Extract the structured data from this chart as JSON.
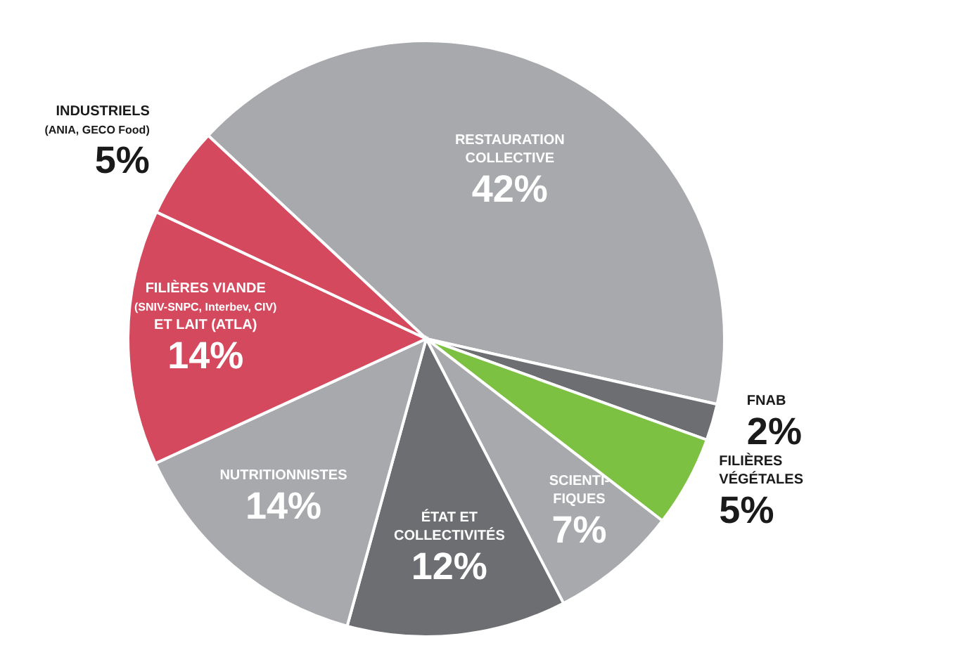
{
  "chart_data": {
    "type": "pie",
    "categories": [
      "RESTAURATION\nCOLLECTIVE",
      "FNAB",
      "FILIÈRES\nVÉGÉTALES",
      "SCIENTI-\nFIQUES",
      "ÉTAT ET\nCOLLECTIVITÉS",
      "NUTRITIONNISTES",
      "FILIÈRES VIANDE\n(SNIV-SNPC, Interbev, CIV)\nET LAIT (ATLA)",
      "INDUSTRIELS\n(ANIA, GECO Food)"
    ],
    "values": [
      42,
      2,
      5,
      7,
      12,
      14,
      14,
      5
    ],
    "value_labels": [
      "42%",
      "2%",
      "5%",
      "7%",
      "12%",
      "14%",
      "14%",
      "5%"
    ],
    "colors": [
      "#a7a9ac",
      "#6d6e71",
      "#7dc142",
      "#a7a9ac",
      "#6d6e71",
      "#a7a9ac",
      "#d4495e",
      "#d4495e"
    ]
  }
}
